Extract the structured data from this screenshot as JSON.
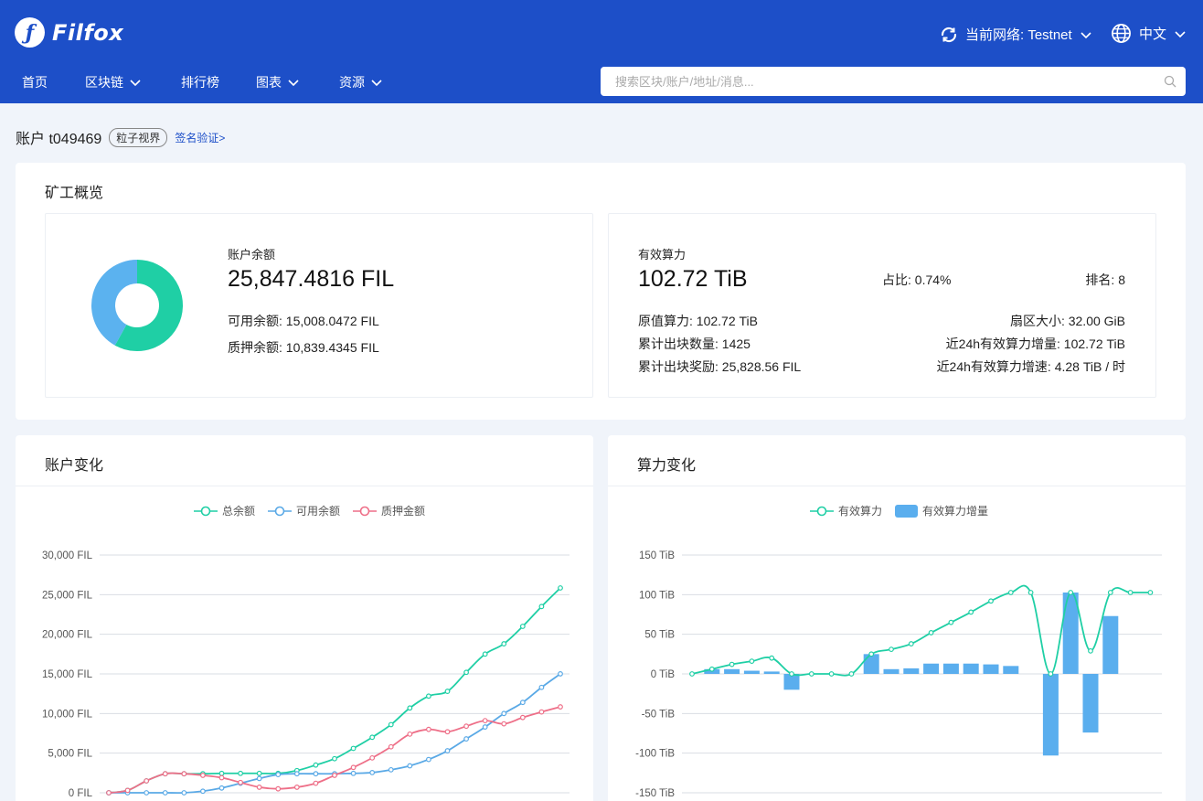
{
  "header": {
    "logo_text": "Filfox",
    "network_label": "当前网络: Testnet",
    "language": "中文",
    "nav": [
      {
        "label": "首页",
        "has_dropdown": false
      },
      {
        "label": "区块链",
        "has_dropdown": true
      },
      {
        "label": "排行榜",
        "has_dropdown": false
      },
      {
        "label": "图表",
        "has_dropdown": true
      },
      {
        "label": "资源",
        "has_dropdown": true
      }
    ],
    "search_placeholder": "搜索区块/账户/地址/消息..."
  },
  "account": {
    "title": "账户 t049469",
    "tag": "粒子视界",
    "verify_link": "签名验证>"
  },
  "overview": {
    "title": "矿工概览",
    "balance_label": "账户余额",
    "balance_value": "25,847.4816 FIL",
    "available": "可用余额: 15,008.0472 FIL",
    "pledged": "质押余额: 10,839.4345 FIL",
    "donut": {
      "available_fraction": 0.5806,
      "pledged_fraction": 0.4194,
      "colors": [
        "#1fcfa5",
        "#5bb2ef"
      ]
    },
    "power_label": "有效算力",
    "power_value": "102.72 TiB",
    "share": "占比: 0.74%",
    "rank": "排名: 8",
    "raw_power": "原值算力: 102.72 TiB",
    "sector_size": "扇区大小: 32.00 GiB",
    "blocks": "累计出块数量: 1425",
    "power_increase_24h": "近24h有效算力增量: 102.72 TiB",
    "block_reward": "累计出块奖励: 25,828.56 FIL",
    "power_speed_24h": "近24h有效算力增速: 4.28 TiB / 时"
  },
  "account_chart": {
    "title": "账户变化",
    "chart_data": {
      "type": "line",
      "y_ticks": [
        "30,000 FIL",
        "25,000 FIL",
        "20,000 FIL",
        "15,000 FIL",
        "10,000 FIL",
        "5,000 FIL",
        "0 FIL"
      ],
      "ylim": [
        0,
        30000
      ],
      "series": [
        {
          "name": "总余额",
          "color": "#1fcfa5",
          "values": [
            0,
            300,
            1500,
            2400,
            2400,
            2400,
            2450,
            2450,
            2450,
            2450,
            2800,
            3500,
            4300,
            5600,
            7000,
            8600,
            10700,
            12200,
            12800,
            15200,
            17500,
            18800,
            21000,
            23500,
            25847
          ]
        },
        {
          "name": "可用余额",
          "color": "#5aa9e6",
          "values": [
            0,
            0,
            0,
            0,
            0,
            200,
            600,
            1200,
            1800,
            2300,
            2400,
            2400,
            2400,
            2450,
            2550,
            2900,
            3400,
            4200,
            5300,
            6800,
            8300,
            10000,
            11400,
            13300,
            15008
          ]
        },
        {
          "name": "质押金额",
          "color": "#ee6f88",
          "values": [
            0,
            300,
            1500,
            2400,
            2400,
            2200,
            1900,
            1300,
            700,
            500,
            700,
            1200,
            2200,
            3200,
            4400,
            5800,
            7400,
            8000,
            7700,
            8400,
            9100,
            8700,
            9500,
            10200,
            10839
          ]
        }
      ]
    }
  },
  "power_chart": {
    "title": "算力变化",
    "chart_data": {
      "type": "bar",
      "y_ticks": [
        "150 TiB",
        "100 TiB",
        "50 TiB",
        "0 TiB",
        "-50 TiB",
        "-100 TiB",
        "-150 TiB"
      ],
      "ylim": [
        -150,
        150
      ],
      "series": [
        {
          "name": "有效算力",
          "type": "line",
          "color": "#1fcfa5",
          "values": [
            0,
            6,
            12,
            16,
            20,
            0,
            0,
            0,
            0,
            25,
            31,
            38,
            52,
            65,
            78,
            92,
            102.7,
            102.7,
            0,
            102.7,
            29,
            102.7,
            102.7,
            102.7
          ]
        },
        {
          "name": "有效算力增量",
          "type": "bar",
          "color": "#5aaeee",
          "values": [
            0,
            6,
            6,
            4,
            3,
            -20,
            0,
            0,
            0,
            25,
            6,
            7,
            13,
            13,
            13,
            12,
            10,
            0,
            -103,
            102.7,
            -74,
            73,
            0,
            0
          ]
        }
      ]
    }
  }
}
